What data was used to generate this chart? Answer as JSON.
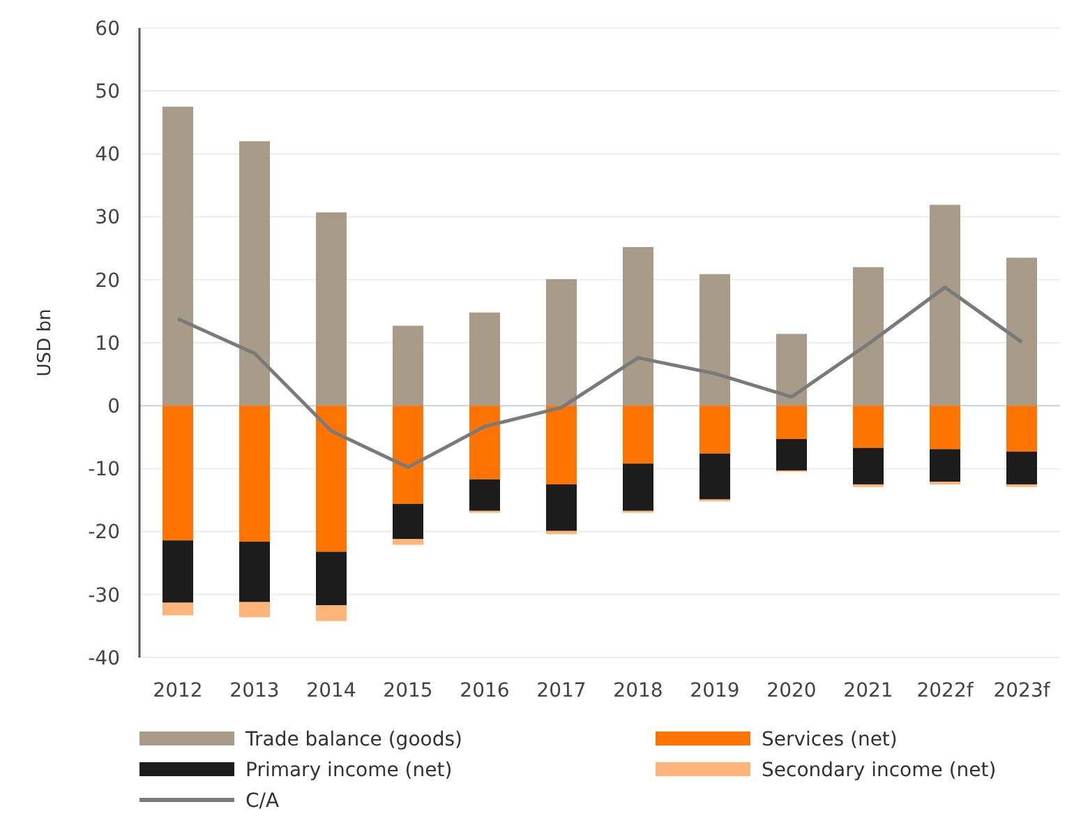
{
  "chart_data": {
    "type": "bar",
    "stacked": true,
    "ylabel": "USD bn",
    "categories": [
      "2012",
      "2013",
      "2014",
      "2015",
      "2016",
      "2017",
      "2018",
      "2019",
      "2020",
      "2021",
      "2022f",
      "2023f"
    ],
    "series": [
      {
        "name": "Trade balance (goods)",
        "color": "#a89c88",
        "values": [
          47.5,
          42,
          30.7,
          12.7,
          14.8,
          20.1,
          25.2,
          20.9,
          11.4,
          22,
          31.9,
          23.5
        ]
      },
      {
        "name": "Services (net)",
        "color": "#ff7300",
        "values": [
          -21.4,
          -21.6,
          -23.2,
          -15.6,
          -11.7,
          -12.5,
          -9.2,
          -7.6,
          -5.3,
          -6.7,
          -6.9,
          -7.3
        ]
      },
      {
        "name": "Primary income (net)",
        "color": "#1c1c1c",
        "values": [
          -9.9,
          -9.6,
          -8.5,
          -5.6,
          -5,
          -7.4,
          -7.5,
          -7.3,
          -5,
          -5.8,
          -5.2,
          -5.2
        ]
      },
      {
        "name": "Secondary income (net)",
        "color": "#ffb47a",
        "values": [
          -2,
          -2.4,
          -2.5,
          -0.9,
          -0.3,
          -0.5,
          -0.3,
          -0.3,
          -0.2,
          -0.4,
          -0.4,
          -0.4
        ]
      },
      {
        "name": "C/A",
        "type": "line",
        "color": "#7a7a7a",
        "values": [
          13.8,
          8.3,
          -4,
          -9.8,
          -3.3,
          -0.3,
          7.6,
          5.1,
          1.4,
          9.8,
          18.8,
          10.1
        ]
      }
    ],
    "ylim": [
      -40,
      60
    ],
    "yticks": [
      -40,
      -30,
      -20,
      -10,
      0,
      10,
      20,
      30,
      40,
      50,
      60
    ],
    "grid": "y",
    "legend": "bottom"
  }
}
